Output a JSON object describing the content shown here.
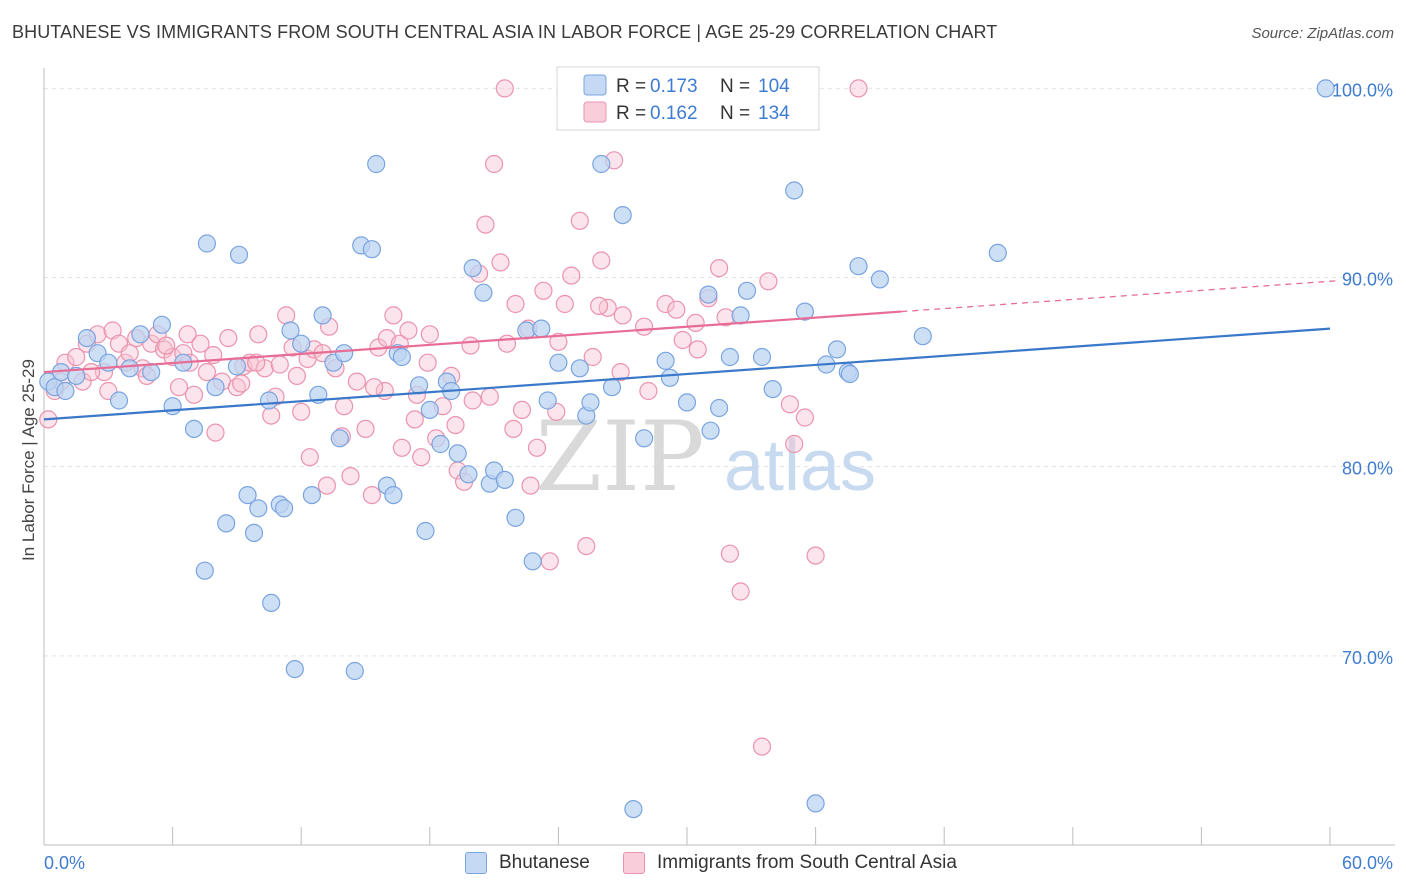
{
  "title": "BHUTANESE VS IMMIGRANTS FROM SOUTH CENTRAL ASIA IN LABOR FORCE | AGE 25-29 CORRELATION CHART",
  "source": "Source: ZipAtlas.com",
  "watermark": {
    "zip": "ZIP",
    "atlas": "atlas"
  },
  "colors": {
    "blue": "#3a78c9",
    "blue_fill": "#bcd4f2",
    "pink": "#e86d96",
    "pink_fill": "#f7c4d3",
    "axis_text": "#3f7cd0",
    "grid": "#e3e3e3"
  },
  "stats_legend": [
    {
      "r_label": "R =",
      "r": "0.173",
      "n_label": "N =",
      "n": "104"
    },
    {
      "r_label": "R =",
      "r": "0.162",
      "n_label": "N =",
      "n": "134"
    }
  ],
  "chart_data": {
    "type": "scatter",
    "title": "BHUTANESE VS IMMIGRANTS FROM SOUTH CENTRAL ASIA IN LABOR FORCE | AGE 25-29 CORRELATION CHART",
    "xlabel": "",
    "ylabel": "In Labor Force | Age 25-29",
    "xlim": [
      0,
      60
    ],
    "ylim": [
      60,
      101.5
    ],
    "x_tick_labels": [
      "0.0%",
      "60.0%"
    ],
    "y_ticks": [
      70,
      80,
      90,
      100
    ],
    "y_tick_labels": [
      "70.0%",
      "80.0%",
      "90.0%",
      "100.0%"
    ],
    "grid": true,
    "legend_position": "top-center",
    "series": [
      {
        "name": "Bhutanese",
        "color": "#3a78c9",
        "trend": {
          "x0": 0,
          "y0": 82.5,
          "x1": 60,
          "y1": 87.3,
          "dashed_from": null
        },
        "points": [
          [
            0.2,
            84.5
          ],
          [
            0.5,
            84.2
          ],
          [
            0.8,
            85.0
          ],
          [
            1.0,
            84.0
          ],
          [
            1.5,
            84.8
          ],
          [
            2.0,
            86.8
          ],
          [
            2.5,
            86.0
          ],
          [
            3.0,
            85.5
          ],
          [
            3.5,
            83.5
          ],
          [
            4.0,
            85.2
          ],
          [
            4.5,
            87.0
          ],
          [
            5.0,
            85.0
          ],
          [
            5.5,
            87.5
          ],
          [
            6.0,
            83.2
          ],
          [
            6.5,
            85.5
          ],
          [
            7.0,
            82.0
          ],
          [
            7.5,
            74.5
          ],
          [
            7.6,
            91.8
          ],
          [
            8.0,
            84.2
          ],
          [
            8.5,
            77.0
          ],
          [
            9.0,
            85.3
          ],
          [
            9.1,
            91.2
          ],
          [
            9.5,
            78.5
          ],
          [
            9.8,
            76.5
          ],
          [
            10.0,
            77.8
          ],
          [
            10.5,
            83.5
          ],
          [
            10.6,
            72.8
          ],
          [
            11.0,
            78.0
          ],
          [
            11.2,
            77.8
          ],
          [
            11.5,
            87.2
          ],
          [
            11.7,
            69.3
          ],
          [
            12.0,
            86.5
          ],
          [
            12.5,
            78.5
          ],
          [
            12.8,
            83.8
          ],
          [
            13.0,
            88.0
          ],
          [
            13.5,
            85.5
          ],
          [
            13.8,
            81.5
          ],
          [
            14.0,
            86.0
          ],
          [
            14.5,
            69.2
          ],
          [
            14.8,
            91.7
          ],
          [
            15.3,
            91.5
          ],
          [
            15.5,
            96.0
          ],
          [
            16.0,
            79.0
          ],
          [
            16.3,
            78.5
          ],
          [
            16.5,
            86.0
          ],
          [
            16.7,
            85.8
          ],
          [
            17.5,
            84.3
          ],
          [
            17.8,
            76.6
          ],
          [
            18.0,
            83.0
          ],
          [
            18.5,
            81.2
          ],
          [
            18.8,
            84.5
          ],
          [
            19.0,
            84.0
          ],
          [
            19.3,
            80.7
          ],
          [
            19.8,
            79.6
          ],
          [
            20.0,
            90.5
          ],
          [
            20.5,
            89.2
          ],
          [
            20.8,
            79.1
          ],
          [
            21.0,
            79.8
          ],
          [
            21.5,
            79.3
          ],
          [
            22.0,
            77.3
          ],
          [
            22.5,
            87.2
          ],
          [
            22.8,
            75.0
          ],
          [
            23.2,
            87.3
          ],
          [
            23.5,
            83.5
          ],
          [
            24.0,
            85.5
          ],
          [
            25.0,
            85.2
          ],
          [
            25.3,
            82.7
          ],
          [
            25.5,
            83.4
          ],
          [
            26.0,
            96.0
          ],
          [
            26.5,
            84.2
          ],
          [
            27.0,
            93.3
          ],
          [
            27.5,
            61.9
          ],
          [
            28.0,
            81.5
          ],
          [
            29.0,
            85.6
          ],
          [
            29.2,
            84.7
          ],
          [
            30.0,
            83.4
          ],
          [
            31.0,
            89.1
          ],
          [
            31.1,
            81.9
          ],
          [
            31.5,
            83.1
          ],
          [
            32.0,
            85.8
          ],
          [
            32.5,
            88.0
          ],
          [
            32.8,
            89.3
          ],
          [
            33.5,
            85.8
          ],
          [
            34.0,
            84.1
          ],
          [
            35.0,
            94.6
          ],
          [
            35.5,
            88.2
          ],
          [
            36.0,
            62.2
          ],
          [
            36.5,
            85.4
          ],
          [
            37.0,
            86.2
          ],
          [
            37.5,
            85.0
          ],
          [
            37.6,
            84.9
          ],
          [
            38.0,
            90.6
          ],
          [
            39.0,
            89.9
          ],
          [
            41.0,
            86.9
          ],
          [
            44.5,
            91.3
          ],
          [
            59.8,
            100.0
          ]
        ]
      },
      {
        "name": "Immigrants from South Central Asia",
        "color": "#e86d96",
        "trend": {
          "x0": 0,
          "y0": 85.0,
          "x1": 60,
          "y1": 89.8,
          "dashed_from": 40
        },
        "points": [
          [
            0.2,
            82.5
          ],
          [
            0.5,
            84.0
          ],
          [
            0.8,
            84.5
          ],
          [
            1.0,
            85.5
          ],
          [
            1.5,
            85.8
          ],
          [
            1.8,
            84.5
          ],
          [
            2.0,
            86.5
          ],
          [
            2.5,
            87.0
          ],
          [
            2.8,
            85.0
          ],
          [
            3.0,
            84.0
          ],
          [
            3.2,
            87.2
          ],
          [
            3.5,
            86.5
          ],
          [
            3.8,
            85.5
          ],
          [
            4.0,
            86.0
          ],
          [
            4.3,
            86.8
          ],
          [
            4.6,
            85.2
          ],
          [
            5.0,
            86.5
          ],
          [
            5.3,
            87.0
          ],
          [
            5.6,
            86.2
          ],
          [
            6.0,
            85.8
          ],
          [
            6.3,
            84.2
          ],
          [
            6.5,
            86.0
          ],
          [
            6.8,
            85.5
          ],
          [
            7.0,
            83.8
          ],
          [
            7.3,
            86.5
          ],
          [
            7.6,
            85.0
          ],
          [
            8.0,
            81.8
          ],
          [
            8.3,
            84.5
          ],
          [
            8.6,
            86.8
          ],
          [
            9.0,
            84.2
          ],
          [
            9.3,
            85.3
          ],
          [
            9.6,
            85.5
          ],
          [
            10.0,
            87.0
          ],
          [
            10.3,
            85.2
          ],
          [
            10.6,
            82.7
          ],
          [
            11.0,
            85.4
          ],
          [
            11.3,
            88.0
          ],
          [
            11.6,
            86.3
          ],
          [
            12.0,
            82.9
          ],
          [
            12.3,
            85.7
          ],
          [
            12.6,
            86.2
          ],
          [
            13.0,
            86.0
          ],
          [
            13.3,
            87.4
          ],
          [
            13.6,
            85.2
          ],
          [
            14.0,
            83.2
          ],
          [
            14.3,
            79.5
          ],
          [
            14.6,
            84.5
          ],
          [
            15.0,
            82.0
          ],
          [
            15.3,
            78.5
          ],
          [
            15.6,
            86.3
          ],
          [
            16.0,
            86.8
          ],
          [
            16.3,
            88.0
          ],
          [
            16.6,
            86.5
          ],
          [
            17.0,
            87.2
          ],
          [
            17.3,
            82.5
          ],
          [
            17.6,
            80.5
          ],
          [
            18.0,
            87.0
          ],
          [
            18.3,
            81.5
          ],
          [
            18.6,
            83.2
          ],
          [
            19.0,
            84.8
          ],
          [
            19.3,
            79.8
          ],
          [
            19.6,
            79.2
          ],
          [
            20.0,
            83.5
          ],
          [
            20.3,
            90.2
          ],
          [
            20.6,
            92.8
          ],
          [
            21.0,
            96.0
          ],
          [
            21.3,
            90.8
          ],
          [
            21.6,
            86.5
          ],
          [
            22.0,
            88.6
          ],
          [
            22.3,
            83.0
          ],
          [
            22.6,
            87.3
          ],
          [
            23.0,
            81.0
          ],
          [
            23.3,
            89.3
          ],
          [
            23.6,
            75.0
          ],
          [
            24.0,
            86.6
          ],
          [
            24.3,
            88.6
          ],
          [
            24.6,
            90.1
          ],
          [
            25.0,
            93.0
          ],
          [
            25.3,
            75.8
          ],
          [
            25.6,
            85.8
          ],
          [
            26.0,
            90.9
          ],
          [
            26.3,
            88.4
          ],
          [
            26.6,
            96.2
          ],
          [
            27.0,
            88.0
          ],
          [
            27.5,
            100.0
          ],
          [
            28.0,
            87.4
          ],
          [
            28.5,
            100.0
          ],
          [
            29.0,
            88.6
          ],
          [
            29.5,
            88.3
          ],
          [
            30.0,
            100.0
          ],
          [
            30.5,
            86.2
          ],
          [
            31.0,
            88.9
          ],
          [
            31.5,
            90.5
          ],
          [
            32.0,
            75.4
          ],
          [
            32.5,
            73.4
          ],
          [
            33.0,
            100.0
          ],
          [
            33.5,
            65.2
          ],
          [
            34.0,
            100.0
          ],
          [
            35.0,
            81.2
          ],
          [
            35.5,
            82.6
          ],
          [
            36.0,
            75.3
          ],
          [
            38.0,
            100.0
          ],
          [
            21.5,
            100.0
          ],
          [
            24.5,
            100.0
          ],
          [
            2.2,
            85.0
          ],
          [
            4.8,
            84.8
          ],
          [
            6.7,
            87.0
          ],
          [
            9.9,
            85.5
          ],
          [
            11.8,
            84.8
          ],
          [
            13.9,
            81.6
          ],
          [
            15.9,
            84.0
          ],
          [
            17.9,
            85.5
          ],
          [
            19.9,
            86.4
          ],
          [
            21.9,
            82.0
          ],
          [
            23.9,
            82.9
          ],
          [
            25.9,
            88.5
          ],
          [
            28.2,
            84.0
          ],
          [
            29.8,
            86.7
          ],
          [
            31.8,
            87.9
          ],
          [
            33.8,
            89.8
          ],
          [
            12.4,
            80.5
          ],
          [
            16.7,
            81.0
          ],
          [
            20.8,
            83.7
          ],
          [
            22.7,
            79.0
          ],
          [
            5.7,
            86.4
          ],
          [
            7.9,
            85.9
          ],
          [
            9.2,
            84.4
          ],
          [
            10.8,
            83.7
          ],
          [
            13.2,
            79.0
          ],
          [
            15.4,
            84.2
          ],
          [
            17.4,
            83.8
          ],
          [
            19.2,
            82.2
          ],
          [
            26.9,
            85.0
          ],
          [
            30.4,
            87.6
          ],
          [
            34.8,
            83.3
          ]
        ]
      }
    ]
  }
}
